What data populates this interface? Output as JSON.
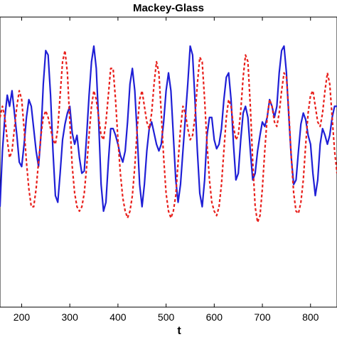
{
  "chart_data": {
    "type": "line",
    "title": "Mackey-Glass",
    "xlabel": "t",
    "ylabel": "",
    "xlim": [
      155,
      855
    ],
    "ylim": [
      0.15,
      1.45
    ],
    "grid": false,
    "legend": "none",
    "x_ticks": [
      200,
      300,
      400,
      500,
      600,
      700,
      800
    ],
    "x_tick_labels": [
      "200",
      "300",
      "400",
      "500",
      "600",
      "700",
      "800"
    ],
    "series": [
      {
        "line_style": "solid",
        "color": "#1f1fd6",
        "points": [
          [
            155,
            0.6
          ],
          [
            160,
            0.85
          ],
          [
            165,
            1.0
          ],
          [
            170,
            1.1
          ],
          [
            175,
            1.05
          ],
          [
            180,
            1.12
          ],
          [
            185,
            1.02
          ],
          [
            190,
            0.92
          ],
          [
            195,
            0.8
          ],
          [
            200,
            0.78
          ],
          [
            205,
            0.88
          ],
          [
            210,
            1.0
          ],
          [
            215,
            1.08
          ],
          [
            220,
            1.05
          ],
          [
            225,
            0.95
          ],
          [
            230,
            0.85
          ],
          [
            235,
            0.78
          ],
          [
            240,
            0.92
          ],
          [
            245,
            1.15
          ],
          [
            250,
            1.3
          ],
          [
            255,
            1.28
          ],
          [
            260,
            1.1
          ],
          [
            265,
            0.85
          ],
          [
            270,
            0.65
          ],
          [
            275,
            0.62
          ],
          [
            280,
            0.75
          ],
          [
            285,
            0.9
          ],
          [
            290,
            0.97
          ],
          [
            295,
            1.02
          ],
          [
            300,
            1.05
          ],
          [
            305,
            0.93
          ],
          [
            310,
            0.88
          ],
          [
            315,
            0.92
          ],
          [
            320,
            0.82
          ],
          [
            325,
            0.75
          ],
          [
            330,
            0.76
          ],
          [
            335,
            0.92
          ],
          [
            340,
            1.1
          ],
          [
            345,
            1.25
          ],
          [
            350,
            1.32
          ],
          [
            355,
            1.22
          ],
          [
            360,
            0.98
          ],
          [
            365,
            0.7
          ],
          [
            370,
            0.58
          ],
          [
            375,
            0.62
          ],
          [
            380,
            0.8
          ],
          [
            385,
            0.95
          ],
          [
            390,
            0.95
          ],
          [
            395,
            0.92
          ],
          [
            400,
            0.88
          ],
          [
            405,
            0.83
          ],
          [
            410,
            0.8
          ],
          [
            415,
            0.85
          ],
          [
            420,
            0.98
          ],
          [
            425,
            1.15
          ],
          [
            430,
            1.22
          ],
          [
            435,
            1.12
          ],
          [
            440,
            0.92
          ],
          [
            445,
            0.7
          ],
          [
            450,
            0.6
          ],
          [
            455,
            0.7
          ],
          [
            460,
            0.85
          ],
          [
            465,
            0.95
          ],
          [
            470,
            0.98
          ],
          [
            475,
            0.93
          ],
          [
            480,
            0.88
          ],
          [
            485,
            0.85
          ],
          [
            490,
            0.88
          ],
          [
            495,
            0.98
          ],
          [
            500,
            1.12
          ],
          [
            505,
            1.2
          ],
          [
            510,
            1.12
          ],
          [
            515,
            0.92
          ],
          [
            520,
            0.72
          ],
          [
            525,
            0.62
          ],
          [
            530,
            0.7
          ],
          [
            535,
            0.85
          ],
          [
            540,
            1.0
          ],
          [
            545,
            1.15
          ],
          [
            550,
            1.32
          ],
          [
            555,
            1.28
          ],
          [
            560,
            1.08
          ],
          [
            565,
            0.85
          ],
          [
            570,
            0.66
          ],
          [
            575,
            0.6
          ],
          [
            580,
            0.72
          ],
          [
            585,
            0.92
          ],
          [
            590,
            1.0
          ],
          [
            595,
            1.0
          ],
          [
            600,
            0.9
          ],
          [
            605,
            0.86
          ],
          [
            610,
            0.88
          ],
          [
            615,
            0.95
          ],
          [
            620,
            1.08
          ],
          [
            625,
            1.18
          ],
          [
            630,
            1.2
          ],
          [
            635,
            1.08
          ],
          [
            640,
            0.88
          ],
          [
            645,
            0.72
          ],
          [
            650,
            0.75
          ],
          [
            655,
            0.9
          ],
          [
            660,
            1.02
          ],
          [
            665,
            1.05
          ],
          [
            670,
            1.0
          ],
          [
            675,
            0.85
          ],
          [
            680,
            0.72
          ],
          [
            685,
            0.75
          ],
          [
            690,
            0.85
          ],
          [
            695,
            0.92
          ],
          [
            700,
            0.98
          ],
          [
            705,
            0.96
          ],
          [
            710,
            1.0
          ],
          [
            715,
            1.08
          ],
          [
            720,
            1.05
          ],
          [
            725,
            1.0
          ],
          [
            730,
            1.05
          ],
          [
            735,
            1.2
          ],
          [
            740,
            1.3
          ],
          [
            745,
            1.32
          ],
          [
            750,
            1.2
          ],
          [
            755,
            1.0
          ],
          [
            760,
            0.82
          ],
          [
            765,
            0.7
          ],
          [
            770,
            0.72
          ],
          [
            775,
            0.85
          ],
          [
            780,
            0.97
          ],
          [
            785,
            1.02
          ],
          [
            790,
            0.99
          ],
          [
            795,
            0.92
          ],
          [
            800,
            0.88
          ],
          [
            805,
            0.75
          ],
          [
            810,
            0.65
          ],
          [
            815,
            0.72
          ],
          [
            820,
            0.88
          ],
          [
            825,
            0.95
          ],
          [
            830,
            0.92
          ],
          [
            835,
            0.88
          ],
          [
            840,
            0.92
          ],
          [
            845,
            1.0
          ],
          [
            850,
            1.05
          ],
          [
            855,
            1.05
          ]
        ]
      },
      {
        "line_style": "dashed",
        "color": "#e8201c",
        "points": [
          [
            155,
            1.0
          ],
          [
            160,
            1.05
          ],
          [
            165,
            1.0
          ],
          [
            170,
            0.9
          ],
          [
            175,
            0.82
          ],
          [
            180,
            0.85
          ],
          [
            185,
            0.95
          ],
          [
            190,
            1.05
          ],
          [
            195,
            1.12
          ],
          [
            200,
            1.08
          ],
          [
            205,
            0.95
          ],
          [
            210,
            0.8
          ],
          [
            215,
            0.68
          ],
          [
            220,
            0.6
          ],
          [
            225,
            0.6
          ],
          [
            230,
            0.68
          ],
          [
            235,
            0.8
          ],
          [
            240,
            0.92
          ],
          [
            245,
            1.0
          ],
          [
            250,
            1.03
          ],
          [
            255,
            1.0
          ],
          [
            260,
            0.95
          ],
          [
            265,
            0.9
          ],
          [
            270,
            0.88
          ],
          [
            275,
            0.95
          ],
          [
            280,
            1.1
          ],
          [
            285,
            1.25
          ],
          [
            290,
            1.3
          ],
          [
            295,
            1.2
          ],
          [
            300,
            0.98
          ],
          [
            305,
            0.78
          ],
          [
            310,
            0.66
          ],
          [
            315,
            0.6
          ],
          [
            320,
            0.58
          ],
          [
            325,
            0.6
          ],
          [
            330,
            0.66
          ],
          [
            335,
            0.78
          ],
          [
            340,
            0.92
          ],
          [
            345,
            1.05
          ],
          [
            350,
            1.12
          ],
          [
            355,
            1.08
          ],
          [
            360,
            1.0
          ],
          [
            365,
            0.92
          ],
          [
            370,
            0.9
          ],
          [
            375,
            0.98
          ],
          [
            380,
            1.1
          ],
          [
            385,
            1.22
          ],
          [
            390,
            1.22
          ],
          [
            395,
            1.08
          ],
          [
            400,
            0.9
          ],
          [
            405,
            0.75
          ],
          [
            410,
            0.64
          ],
          [
            415,
            0.58
          ],
          [
            420,
            0.55
          ],
          [
            425,
            0.58
          ],
          [
            430,
            0.65
          ],
          [
            435,
            0.78
          ],
          [
            440,
            0.95
          ],
          [
            445,
            1.08
          ],
          [
            450,
            1.12
          ],
          [
            455,
            1.05
          ],
          [
            460,
            0.98
          ],
          [
            465,
            0.95
          ],
          [
            470,
            1.02
          ],
          [
            475,
            1.15
          ],
          [
            480,
            1.25
          ],
          [
            485,
            1.2
          ],
          [
            490,
            1.02
          ],
          [
            495,
            0.82
          ],
          [
            500,
            0.66
          ],
          [
            505,
            0.58
          ],
          [
            510,
            0.55
          ],
          [
            515,
            0.58
          ],
          [
            520,
            0.65
          ],
          [
            525,
            0.8
          ],
          [
            530,
            0.95
          ],
          [
            535,
            1.05
          ],
          [
            540,
            1.02
          ],
          [
            545,
            0.95
          ],
          [
            550,
            0.9
          ],
          [
            555,
            0.92
          ],
          [
            560,
            1.0
          ],
          [
            565,
            1.15
          ],
          [
            570,
            1.27
          ],
          [
            575,
            1.25
          ],
          [
            580,
            1.08
          ],
          [
            585,
            0.88
          ],
          [
            590,
            0.72
          ],
          [
            595,
            0.62
          ],
          [
            600,
            0.58
          ],
          [
            605,
            0.56
          ],
          [
            610,
            0.6
          ],
          [
            615,
            0.7
          ],
          [
            620,
            0.85
          ],
          [
            625,
            1.0
          ],
          [
            630,
            1.08
          ],
          [
            635,
            1.05
          ],
          [
            640,
            0.96
          ],
          [
            645,
            0.9
          ],
          [
            650,
            0.92
          ],
          [
            655,
            1.03
          ],
          [
            660,
            1.18
          ],
          [
            665,
            1.28
          ],
          [
            670,
            1.25
          ],
          [
            675,
            1.05
          ],
          [
            680,
            0.8
          ],
          [
            685,
            0.6
          ],
          [
            690,
            0.53
          ],
          [
            695,
            0.56
          ],
          [
            700,
            0.68
          ],
          [
            705,
            0.85
          ],
          [
            710,
            1.0
          ],
          [
            715,
            1.08
          ],
          [
            720,
            1.05
          ],
          [
            725,
            0.98
          ],
          [
            730,
            0.96
          ],
          [
            735,
            1.02
          ],
          [
            740,
            1.12
          ],
          [
            745,
            1.2
          ],
          [
            750,
            1.18
          ],
          [
            755,
            1.02
          ],
          [
            760,
            0.82
          ],
          [
            765,
            0.66
          ],
          [
            770,
            0.58
          ],
          [
            775,
            0.57
          ],
          [
            780,
            0.62
          ],
          [
            785,
            0.72
          ],
          [
            790,
            0.88
          ],
          [
            795,
            1.02
          ],
          [
            800,
            1.1
          ],
          [
            805,
            1.12
          ],
          [
            810,
            1.05
          ],
          [
            815,
            0.98
          ],
          [
            820,
            0.96
          ],
          [
            825,
            1.02
          ],
          [
            830,
            1.12
          ],
          [
            835,
            1.2
          ],
          [
            840,
            1.15
          ],
          [
            845,
            1.0
          ],
          [
            850,
            0.85
          ],
          [
            855,
            0.75
          ]
        ]
      }
    ]
  }
}
